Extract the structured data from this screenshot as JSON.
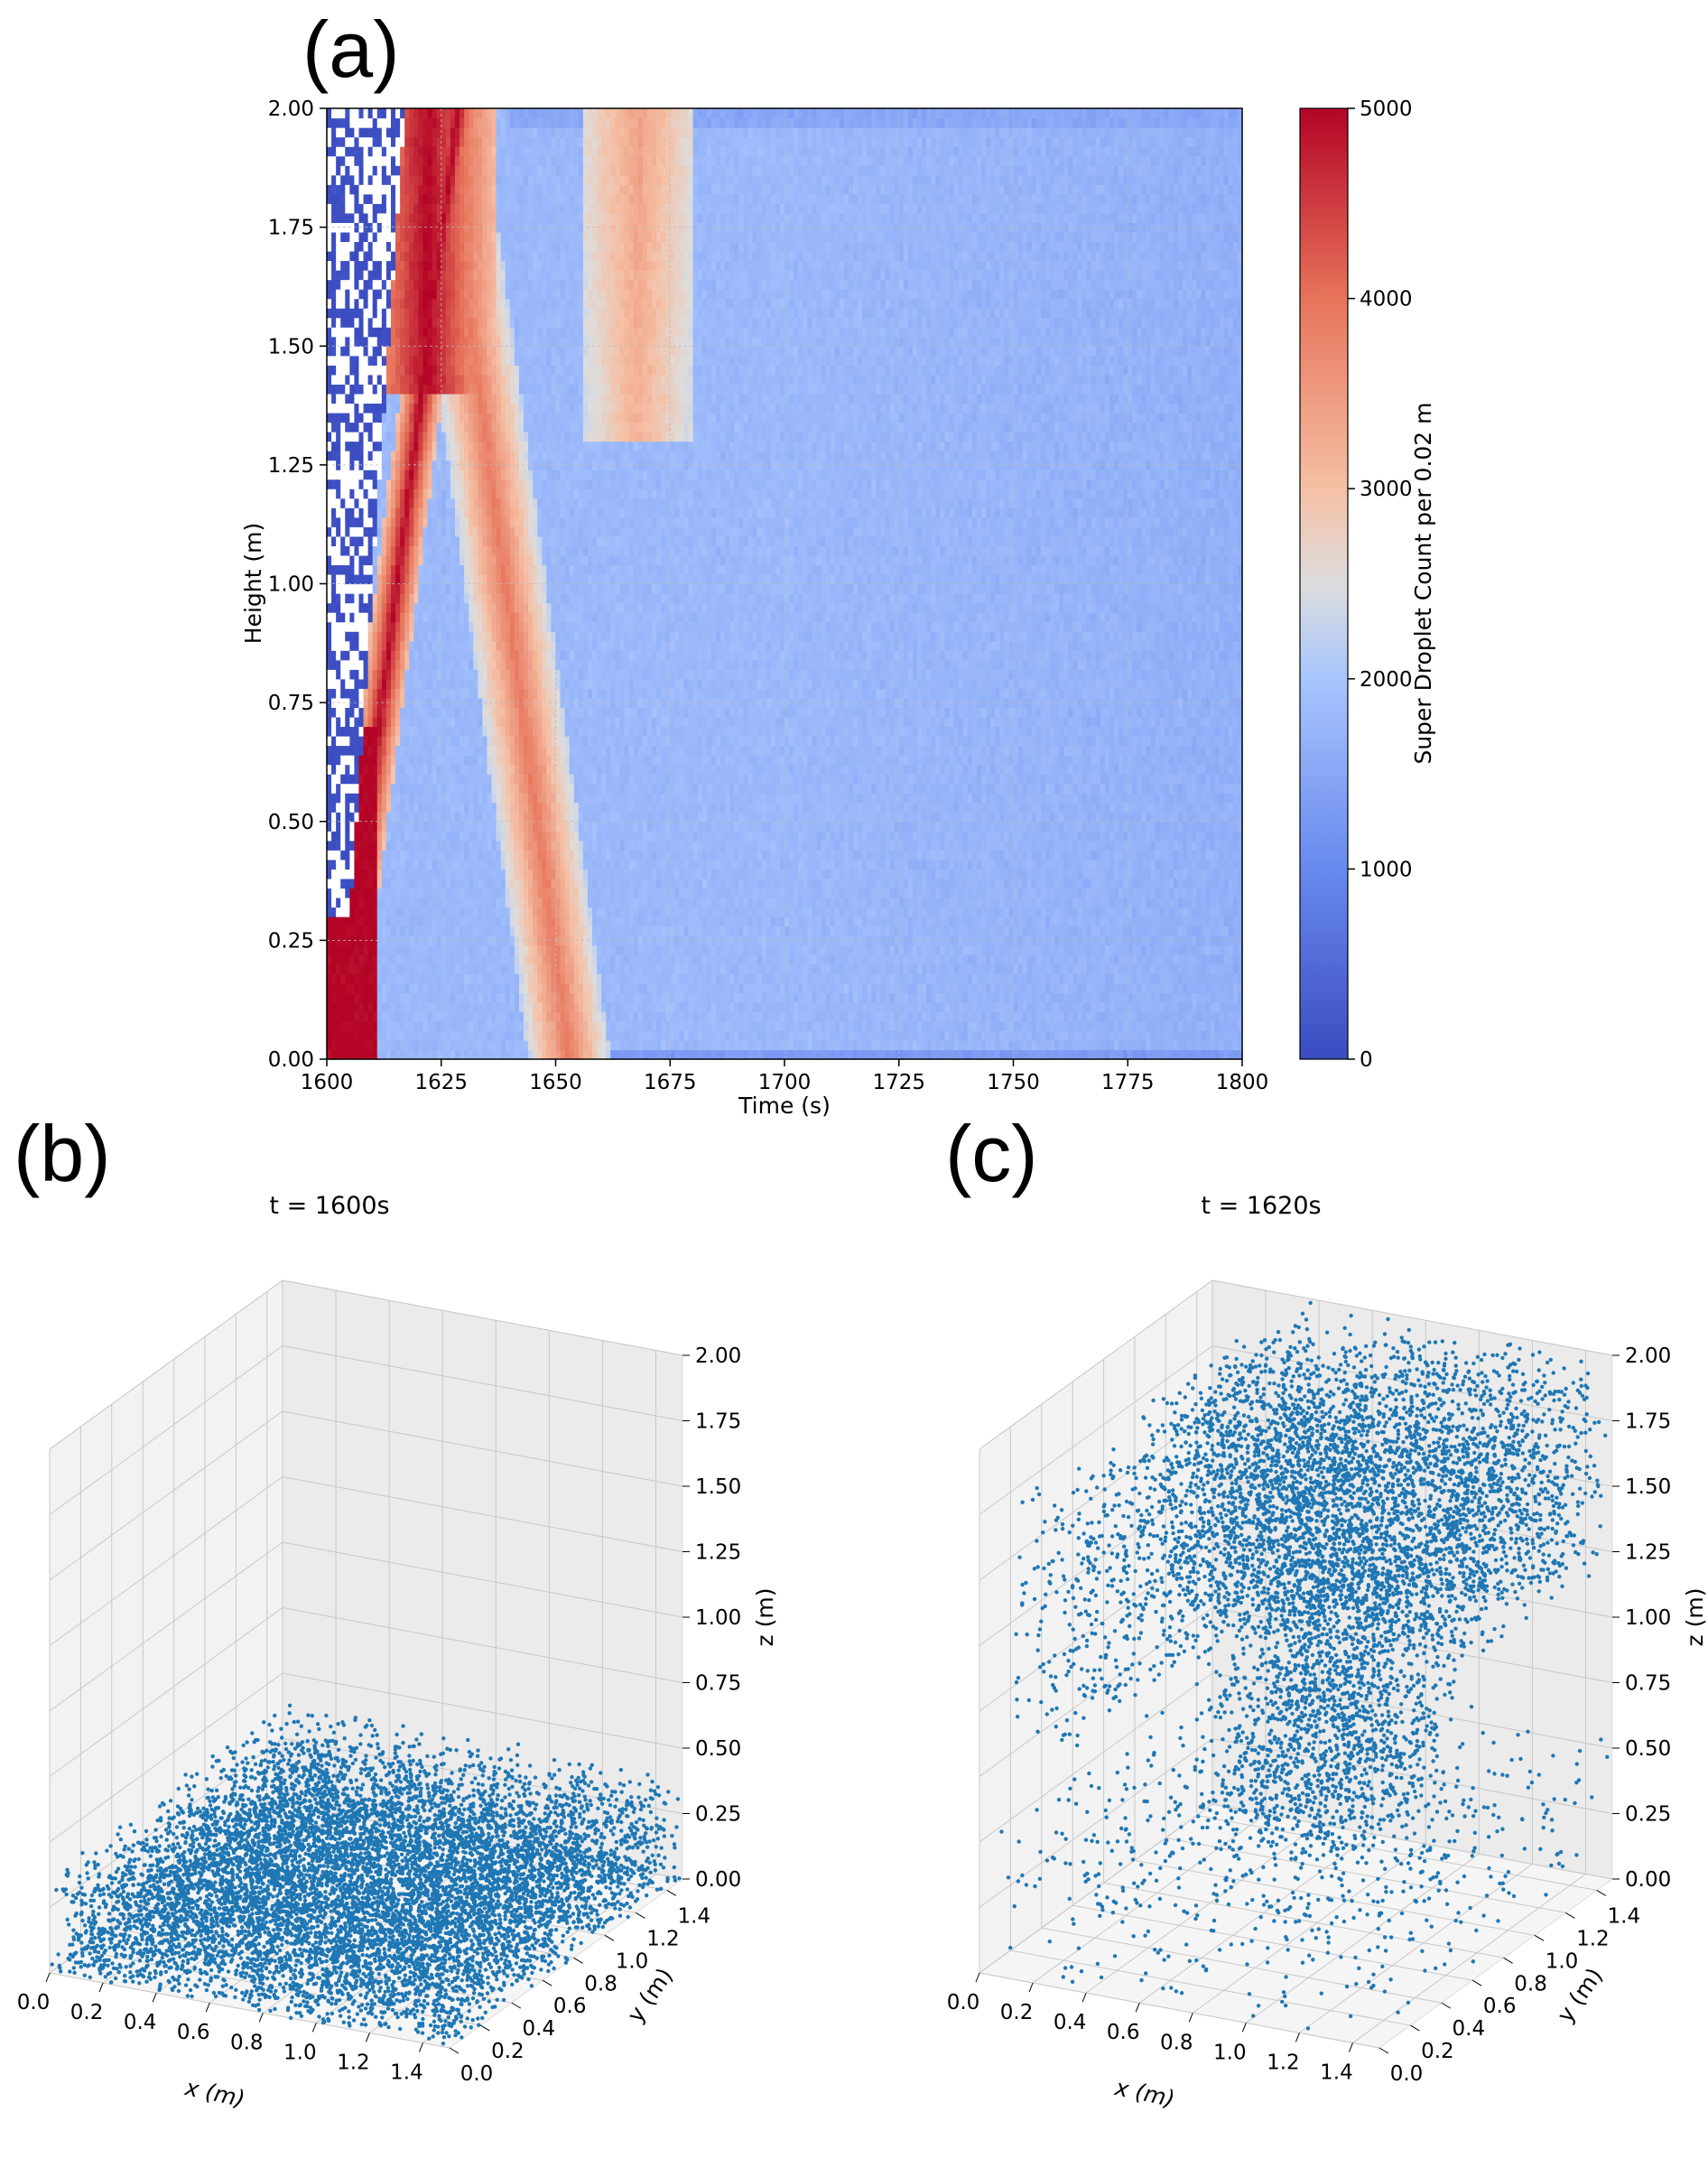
{
  "panels": {
    "a": {
      "letter": "(a)"
    },
    "b": {
      "letter": "(b)",
      "title": "t = 1600s"
    },
    "c": {
      "letter": "(c)",
      "title": "t = 1620s"
    }
  },
  "colors": {
    "scatter": "#1f77b4",
    "cmap_low": "#3b4cc0",
    "cmap_mid": "#dddddd",
    "cmap_high": "#b40426"
  },
  "chart_data": [
    {
      "type": "heatmap",
      "panel": "(a)",
      "xlabel": "Time (s)",
      "ylabel": "Height (m)",
      "colorbar_label": "Super Droplet Count per 0.02 m",
      "xlim": [
        1600,
        1800
      ],
      "ylim": [
        0,
        2.0
      ],
      "clim": [
        0,
        5000
      ],
      "colormap": "coolwarm",
      "x_ticks": [
        "1600",
        "1625",
        "1650",
        "1675",
        "1700",
        "1725",
        "1750",
        "1775",
        "1800"
      ],
      "y_ticks": [
        "0.00",
        "0.25",
        "0.50",
        "0.75",
        "1.00",
        "1.25",
        "1.50",
        "1.75",
        "2.00"
      ],
      "colorbar_ticks": [
        "0",
        "1000",
        "2000",
        "3000",
        "4000",
        "5000"
      ],
      "grid": true,
      "background_level": 1800,
      "features": [
        {
          "desc": "initial dense layer at bottom",
          "time": [
            1600,
            1610
          ],
          "height": [
            0.0,
            0.7
          ],
          "value": 5000
        },
        {
          "desc": "rising front to top",
          "time": [
            1610,
            1635
          ],
          "height": [
            0.7,
            2.0
          ],
          "value": 5000
        },
        {
          "desc": "empty region near top",
          "time": [
            1600,
            1603
          ],
          "height": [
            0.3,
            2.0
          ],
          "value": 0
        },
        {
          "desc": "descending front",
          "time": [
            1625,
            1655
          ],
          "height": [
            2.0,
            0.0
          ],
          "value": 3800
        },
        {
          "desc": "second upper maximum",
          "time": [
            1660,
            1680
          ],
          "height": [
            1.4,
            2.0
          ],
          "value": 3300
        }
      ]
    },
    {
      "type": "scatter",
      "panel": "(b)",
      "title": "t = 1600s",
      "xlabel": "x (m)",
      "ylabel": "y (m)",
      "zlabel": "z (m)",
      "xlim": [
        0,
        1.5
      ],
      "ylim": [
        0,
        1.5
      ],
      "zlim": [
        0,
        2.0
      ],
      "x_ticks": [
        "0.0",
        "0.2",
        "0.4",
        "0.6",
        "0.8",
        "1.0",
        "1.2",
        "1.4"
      ],
      "y_ticks": [
        "0.0",
        "0.2",
        "0.4",
        "0.6",
        "0.8",
        "1.0",
        "1.2",
        "1.4"
      ],
      "z_ticks": [
        "0.00",
        "0.25",
        "0.50",
        "0.75",
        "1.00",
        "1.25",
        "1.50",
        "1.75",
        "2.00"
      ],
      "distribution": {
        "x": [
          0,
          1.5
        ],
        "y": [
          0,
          1.5
        ],
        "z": [
          0,
          0.4
        ]
      }
    },
    {
      "type": "scatter",
      "panel": "(c)",
      "title": "t = 1620s",
      "xlabel": "x (m)",
      "ylabel": "y (m)",
      "zlabel": "z (m)",
      "xlim": [
        0,
        1.5
      ],
      "ylim": [
        0,
        1.5
      ],
      "zlim": [
        0,
        2.0
      ],
      "x_ticks": [
        "0.0",
        "0.2",
        "0.4",
        "0.6",
        "0.8",
        "1.0",
        "1.2",
        "1.4"
      ],
      "y_ticks": [
        "0.0",
        "0.2",
        "0.4",
        "0.6",
        "0.8",
        "1.0",
        "1.2",
        "1.4"
      ],
      "z_ticks": [
        "0.00",
        "0.25",
        "0.50",
        "0.75",
        "1.00",
        "1.25",
        "1.50",
        "1.75",
        "2.00"
      ],
      "distribution": {
        "x": [
          0,
          1.5
        ],
        "y": [
          0,
          1.5
        ],
        "z": [
          0,
          2.0
        ]
      }
    }
  ]
}
